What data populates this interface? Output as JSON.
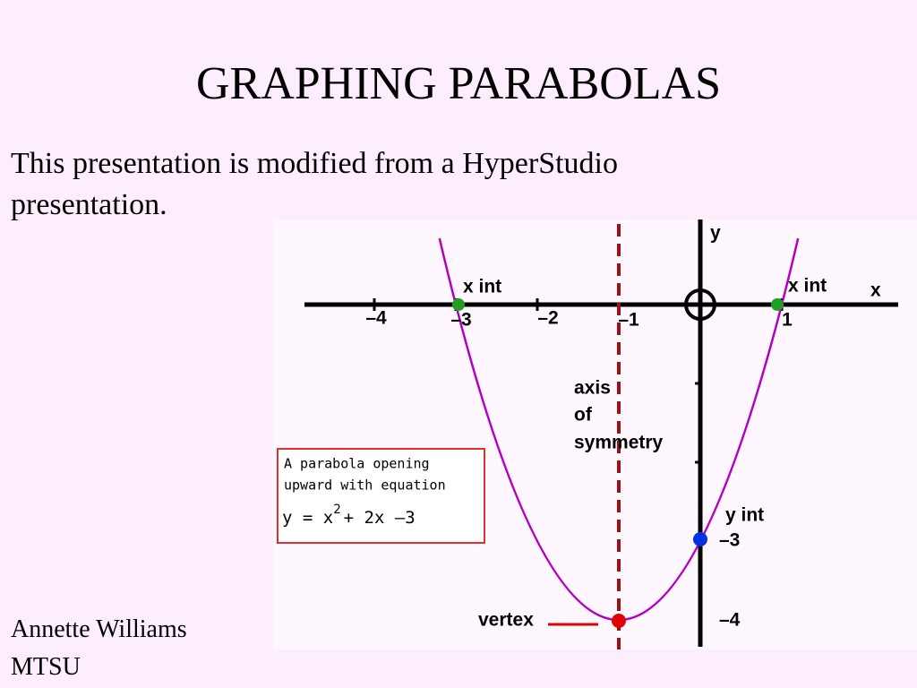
{
  "title": "GRAPHING PARABOLAS",
  "intro": "This presentation is modified from a HyperStudio presentation.",
  "author": [
    "Annette Williams",
    "MTSU"
  ],
  "graph": {
    "axis_labels": {
      "x": "x",
      "y": "y"
    },
    "x_tick_labels": [
      "–4",
      "–3",
      "–2",
      "–1",
      "1"
    ],
    "x_intercept_labels": [
      "x int",
      "x int"
    ],
    "axis_of_symmetry": [
      "axis",
      "of",
      "symmetry"
    ],
    "equation_box": {
      "lines": [
        "A parabola opening",
        "upward with equation"
      ],
      "equation": [
        "y = x",
        "2",
        "+ 2x –3"
      ]
    },
    "y_intercept": {
      "label": "y int",
      "value": "–3"
    },
    "vertex": {
      "label": "vertex",
      "value": "–4"
    }
  }
}
